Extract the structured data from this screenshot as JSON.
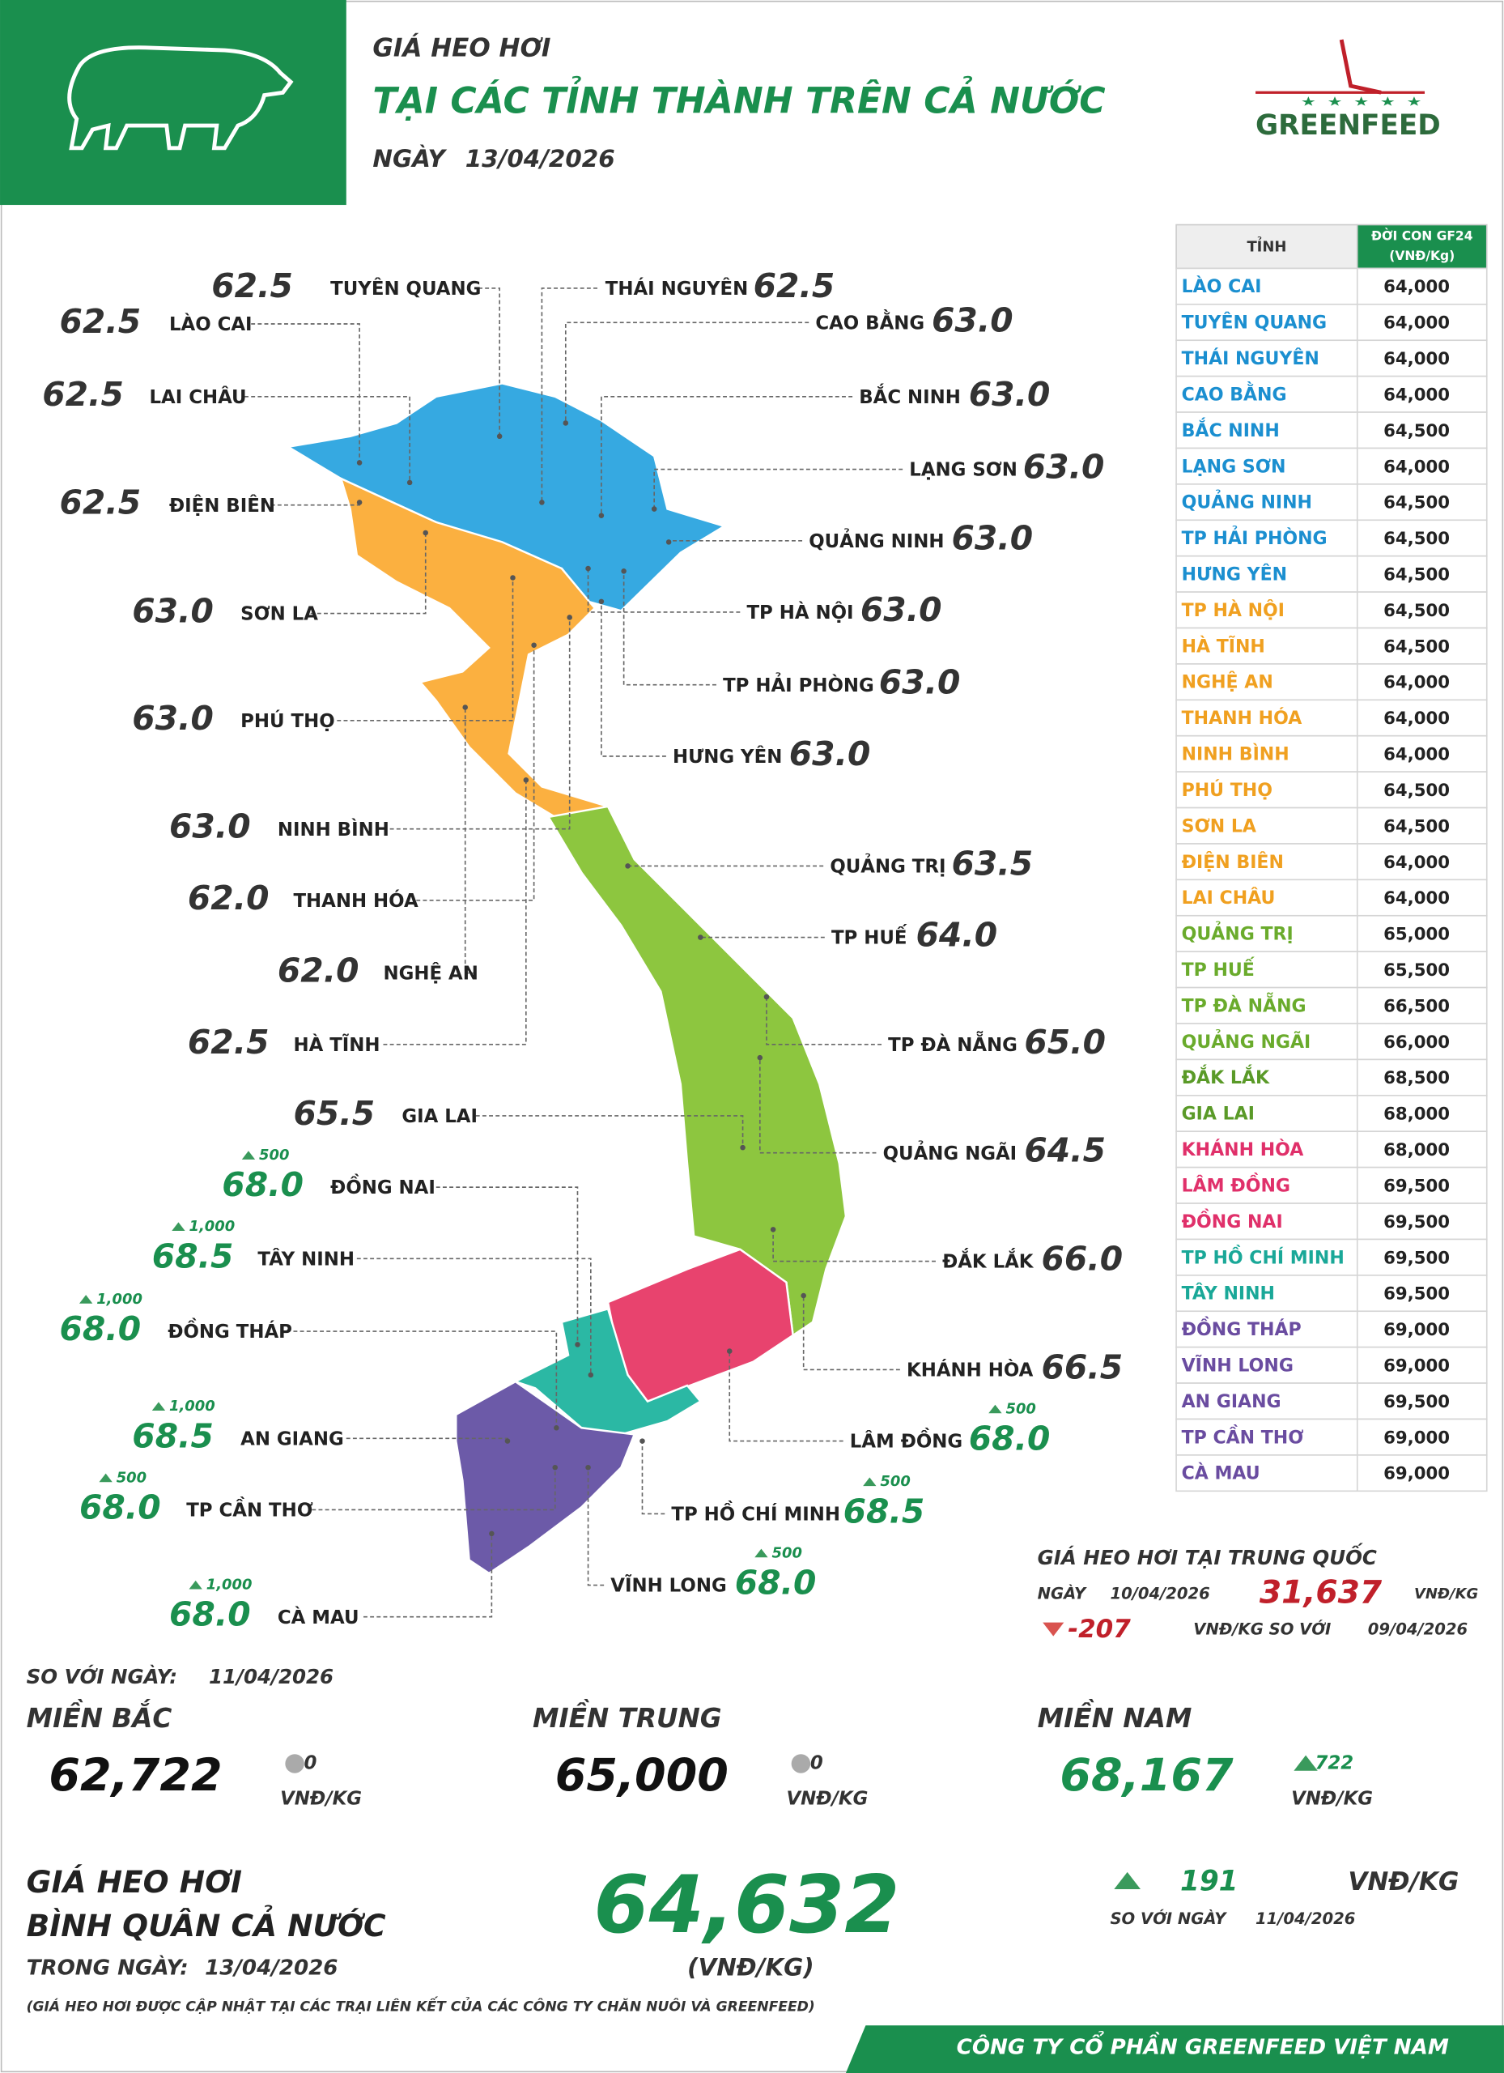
{
  "header": {
    "kicker": "GIÁ HEO HƠI",
    "title": "TẠI CÁC TỈNH THÀNH TRÊN CẢ NƯỚC",
    "date_label": "NGÀY",
    "date": "13/04/2026",
    "logo": "GREENFEED"
  },
  "map": {
    "labels": [
      {
        "name": "TUYÊN QUANG",
        "value": "62.5"
      },
      {
        "name": "LÀO CAI",
        "value": "62.5"
      },
      {
        "name": "LAI CHÂU",
        "value": "62.5"
      },
      {
        "name": "ĐIỆN BIÊN",
        "value": "62.5"
      },
      {
        "name": "SƠN LA",
        "value": "63.0"
      },
      {
        "name": "PHÚ THỌ",
        "value": "63.0"
      },
      {
        "name": "NINH BÌNH",
        "value": "63.0"
      },
      {
        "name": "THANH HÓA",
        "value": "62.0"
      },
      {
        "name": "NGHỆ AN",
        "value": "62.0"
      },
      {
        "name": "HÀ TĨNH",
        "value": "62.5"
      },
      {
        "name": "GIA LAI",
        "value": "65.5"
      },
      {
        "name": "ĐỒNG NAI",
        "value": "68.0",
        "change": "500"
      },
      {
        "name": "TÂY NINH",
        "value": "68.5",
        "change": "1,000"
      },
      {
        "name": "ĐỒNG THÁP",
        "value": "68.0",
        "change": "1,000"
      },
      {
        "name": "AN GIANG",
        "value": "68.5",
        "change": "1,000"
      },
      {
        "name": "TP CẦN THƠ",
        "value": "68.0",
        "change": "500"
      },
      {
        "name": "CÀ MAU",
        "value": "68.0",
        "change": "1,000"
      },
      {
        "name": "THÁI NGUYÊN",
        "value": "62.5"
      },
      {
        "name": "CAO BẰNG",
        "value": "63.0"
      },
      {
        "name": "BẮC NINH",
        "value": "63.0"
      },
      {
        "name": "LẠNG SƠN",
        "value": "63.0"
      },
      {
        "name": "QUẢNG NINH",
        "value": "63.0"
      },
      {
        "name": "TP HÀ NỘI",
        "value": "63.0"
      },
      {
        "name": "TP HẢI PHÒNG",
        "value": "63.0"
      },
      {
        "name": "HƯNG YÊN",
        "value": "63.0"
      },
      {
        "name": "QUẢNG TRỊ",
        "value": "63.5"
      },
      {
        "name": "TP HUẾ",
        "value": "64.0"
      },
      {
        "name": "TP ĐÀ NẴNG",
        "value": "65.0"
      },
      {
        "name": "QUẢNG NGÃI",
        "value": "64.5"
      },
      {
        "name": "ĐẮK LẮK",
        "value": "66.0"
      },
      {
        "name": "KHÁNH HÒA",
        "value": "66.5"
      },
      {
        "name": "LÂM ĐỒNG",
        "value": "68.0",
        "change": "500"
      },
      {
        "name": "TP HỒ CHÍ MINH",
        "value": "68.5",
        "change": "500"
      },
      {
        "name": "VĨNH LONG",
        "value": "68.0",
        "change": "500"
      }
    ]
  },
  "table": {
    "header": [
      "TỈNH",
      "ĐỜI CON GF24",
      "(VNĐ/Kg)"
    ],
    "rows": [
      {
        "name": "LÀO CAI",
        "price": "64,000",
        "color": "#1b8fd0"
      },
      {
        "name": "TUYÊN QUANG",
        "price": "64,000",
        "color": "#1b8fd0"
      },
      {
        "name": "THÁI NGUYÊN",
        "price": "64,000",
        "color": "#1b8fd0"
      },
      {
        "name": "CAO BẰNG",
        "price": "64,000",
        "color": "#1b8fd0"
      },
      {
        "name": "BẮC NINH",
        "price": "64,500",
        "color": "#1b8fd0"
      },
      {
        "name": "LẠNG SƠN",
        "price": "64,000",
        "color": "#1b8fd0"
      },
      {
        "name": "QUẢNG NINH",
        "price": "64,500",
        "color": "#1b8fd0"
      },
      {
        "name": "TP HẢI PHÒNG",
        "price": "64,500",
        "color": "#1b8fd0"
      },
      {
        "name": "HƯNG YÊN",
        "price": "64,500",
        "color": "#1b8fd0"
      },
      {
        "name": "TP HÀ NỘI",
        "price": "64,500",
        "color": "#f0a020"
      },
      {
        "name": "HÀ TĨNH",
        "price": "64,500",
        "color": "#f0a020"
      },
      {
        "name": "NGHỆ AN",
        "price": "64,000",
        "color": "#f0a020"
      },
      {
        "name": "THANH HÓA",
        "price": "64,000",
        "color": "#f0a020"
      },
      {
        "name": "NINH BÌNH",
        "price": "64,000",
        "color": "#f0a020"
      },
      {
        "name": "PHÚ THỌ",
        "price": "64,500",
        "color": "#f0a020"
      },
      {
        "name": "SƠN LA",
        "price": "64,500",
        "color": "#f0a020"
      },
      {
        "name": "ĐIỆN BIÊN",
        "price": "64,000",
        "color": "#f0a020"
      },
      {
        "name": "LAI CHÂU",
        "price": "64,000",
        "color": "#f0a020"
      },
      {
        "name": "QUẢNG TRỊ",
        "price": "65,000",
        "color": "#6aab2c"
      },
      {
        "name": "TP HUẾ",
        "price": "65,500",
        "color": "#6aab2c"
      },
      {
        "name": "TP ĐÀ NẴNG",
        "price": "66,500",
        "color": "#6aab2c"
      },
      {
        "name": "QUẢNG NGÃI",
        "price": "66,000",
        "color": "#6aab2c"
      },
      {
        "name": "ĐẮK LẮK",
        "price": "68,500",
        "color": "#5a9a28"
      },
      {
        "name": "GIA LAI",
        "price": "68,000",
        "color": "#5a9a28"
      },
      {
        "name": "KHÁNH HÒA",
        "price": "68,000",
        "color": "#e0306a"
      },
      {
        "name": "LÂM ĐỒNG",
        "price": "69,500",
        "color": "#e0306a"
      },
      {
        "name": "ĐỒNG NAI",
        "price": "69,500",
        "color": "#e0306a"
      },
      {
        "name": "TP HỒ CHÍ MINH",
        "price": "69,500",
        "color": "#1aa898"
      },
      {
        "name": "TÂY NINH",
        "price": "69,500",
        "color": "#1aa898"
      },
      {
        "name": "ĐỒNG THÁP",
        "price": "69,000",
        "color": "#6a4ca0"
      },
      {
        "name": "VĨNH LONG",
        "price": "69,000",
        "color": "#6a4ca0"
      },
      {
        "name": "AN GIANG",
        "price": "69,500",
        "color": "#6a4ca0"
      },
      {
        "name": "TP CẦN THƠ",
        "price": "69,000",
        "color": "#6a4ca0"
      },
      {
        "name": "CÀ MAU",
        "price": "69,000",
        "color": "#6a4ca0"
      }
    ]
  },
  "china": {
    "title": "GIÁ HEO HƠI TẠI TRUNG QUỐC",
    "date_label": "NGÀY",
    "date": "10/04/2026",
    "price": "31,637",
    "unit": "VNĐ/KG",
    "change": "-207",
    "direction": "down",
    "change_note": "VNĐ/KG SO VỚI",
    "compare_date": "09/04/2026"
  },
  "comparison": {
    "label": "SO VỚI NGÀY:",
    "date": "11/04/2026",
    "regions": [
      {
        "name": "MIỀN BẮC",
        "value": "62,722",
        "change": "0",
        "direction": "flat",
        "unit": "VNĐ/KG",
        "color": "#111111"
      },
      {
        "name": "MIỀN TRUNG",
        "value": "65,000",
        "change": "0",
        "direction": "flat",
        "unit": "VNĐ/KG",
        "color": "#111111"
      },
      {
        "name": "MIỀN NAM",
        "value": "68,167",
        "change": "722",
        "direction": "up",
        "unit": "VNĐ/KG",
        "color": "#1a8f4e"
      }
    ]
  },
  "national": {
    "label_lines": [
      "GIÁ HEO HƠI",
      "BÌNH QUÂN CẢ NƯỚC"
    ],
    "day_label": "TRONG NGÀY:",
    "date": "13/04/2026",
    "value": "64,632",
    "unit": "(VNĐ/KG)",
    "change": "191",
    "direction": "up",
    "change_unit": "VNĐ/KG",
    "compare_label": "SO VỚI NGÀY",
    "compare_date": "11/04/2026"
  },
  "note": "(GIÁ HEO HƠI ĐƯỢC CẬP NHẬT TẠI CÁC TRẠI LIÊN KẾT CỦA CÁC CÔNG TY CHĂN NUÔI VÀ GREENFEED)",
  "footer": "CÔNG TY CỔ PHẦN GREENFEED VIỆT NAM"
}
